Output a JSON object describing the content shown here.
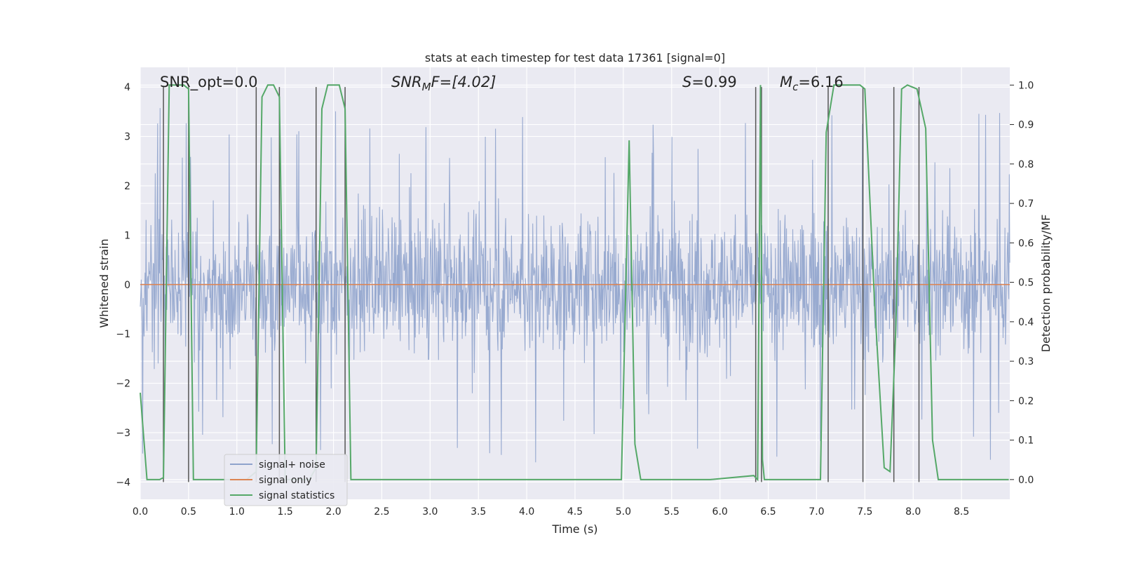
{
  "chart_data": {
    "type": "line",
    "title": "stats at each timestep for test data 17361 [signal=0]",
    "xlabel": "Time (s)",
    "ylabel": "Whitened strain",
    "ylabel_right": "Detection probability/MF",
    "xlim": [
      0.0,
      9.0
    ],
    "ylim": [
      -4.35,
      4.4
    ],
    "ylim_right": [
      -0.05,
      1.045
    ],
    "x_ticks": [
      0.0,
      0.5,
      1.0,
      1.5,
      2.0,
      2.5,
      3.0,
      3.5,
      4.0,
      4.5,
      5.0,
      5.5,
      6.0,
      6.5,
      7.0,
      7.5,
      8.0,
      8.5
    ],
    "x_tick_labels": [
      "0.0",
      "0.5",
      "1.0",
      "1.5",
      "2.0",
      "2.5",
      "3.0",
      "3.5",
      "4.0",
      "4.5",
      "5.0",
      "5.5",
      "6.0",
      "6.5",
      "7.0",
      "7.5",
      "8.0",
      "8.5"
    ],
    "y_ticks": [
      -4,
      -3,
      -2,
      -1,
      0,
      1,
      2,
      3,
      4
    ],
    "y_tick_labels": [
      "−4",
      "−3",
      "−2",
      "−1",
      "0",
      "1",
      "2",
      "3",
      "4"
    ],
    "y_ticks_right": [
      0.0,
      0.1,
      0.2,
      0.3,
      0.4,
      0.5,
      0.6,
      0.7,
      0.8,
      0.9,
      1.0
    ],
    "y_tick_labels_right": [
      "0.0",
      "0.1",
      "0.2",
      "0.3",
      "0.4",
      "0.5",
      "0.6",
      "0.7",
      "0.8",
      "0.9",
      "1.0"
    ],
    "annotations": {
      "snr_opt": "SNR_opt=0.0",
      "snr_mf": "SNR<sub>M</sub>F=[4.02]",
      "snr_mf_base": "SNR",
      "snr_mf_sub": "M",
      "snr_mf_rest": "F=[4.02]",
      "s_value_var": "S",
      "s_value_rest": "=0.99",
      "mc_var": "M",
      "mc_sub": "c",
      "mc_rest": "=6.16"
    },
    "legend": {
      "position": "lower-left",
      "entries": [
        {
          "label": "signal+ noise",
          "color": "#8fa3cc"
        },
        {
          "label": "signal only",
          "color": "#dd8452"
        },
        {
          "label": "signal statistics",
          "color": "#55a868"
        }
      ]
    },
    "colors": {
      "background": "#eaeaf2",
      "grid": "#ffffff",
      "noise": "#8fa3cc",
      "signal": "#dd8452",
      "stats": "#55a868",
      "markers": "#555555"
    },
    "series": [
      {
        "name": "signal+ noise",
        "kind": "noise",
        "duration_s": 9.0,
        "typical_amplitude": 1.6,
        "peak_amplitude": 3.7
      },
      {
        "name": "signal only",
        "kind": "constant",
        "value": 0.0
      },
      {
        "name": "signal statistics",
        "axis": "right",
        "x": [
          0.0,
          0.07,
          0.2,
          0.24,
          0.3,
          0.45,
          0.5,
          0.55,
          1.1,
          1.2,
          1.26,
          1.32,
          1.38,
          1.44,
          1.5,
          1.75,
          1.82,
          1.88,
          1.94,
          2.06,
          2.12,
          2.18,
          4.98,
          5.06,
          5.12,
          5.18,
          5.9,
          6.35,
          6.39,
          6.42,
          6.44,
          6.46,
          7.04,
          7.1,
          7.18,
          7.45,
          7.5,
          7.6,
          7.7,
          7.76,
          7.82,
          7.88,
          7.94,
          8.04,
          8.13,
          8.2,
          8.26,
          8.4,
          8.99
        ],
        "y": [
          0.22,
          0.0,
          0.0,
          0.005,
          1.0,
          1.0,
          0.99,
          0.0,
          0.0,
          0.02,
          0.97,
          1.0,
          1.0,
          0.97,
          0.0,
          0.0,
          0.03,
          0.94,
          1.0,
          1.0,
          0.94,
          0.0,
          0.0,
          0.86,
          0.09,
          0.0,
          0.0,
          0.01,
          0.0,
          1.0,
          0.05,
          0.0,
          0.0,
          0.88,
          1.0,
          1.0,
          0.99,
          0.45,
          0.03,
          0.02,
          0.38,
          0.99,
          1.0,
          0.99,
          0.89,
          0.1,
          0.0,
          0.0,
          0.0
        ]
      },
      {
        "name": "detection markers",
        "kind": "vertical-lines",
        "x": [
          0.24,
          0.5,
          1.2,
          1.44,
          1.82,
          2.12,
          6.37,
          6.43,
          7.12,
          7.48,
          7.8,
          8.06
        ]
      }
    ]
  }
}
